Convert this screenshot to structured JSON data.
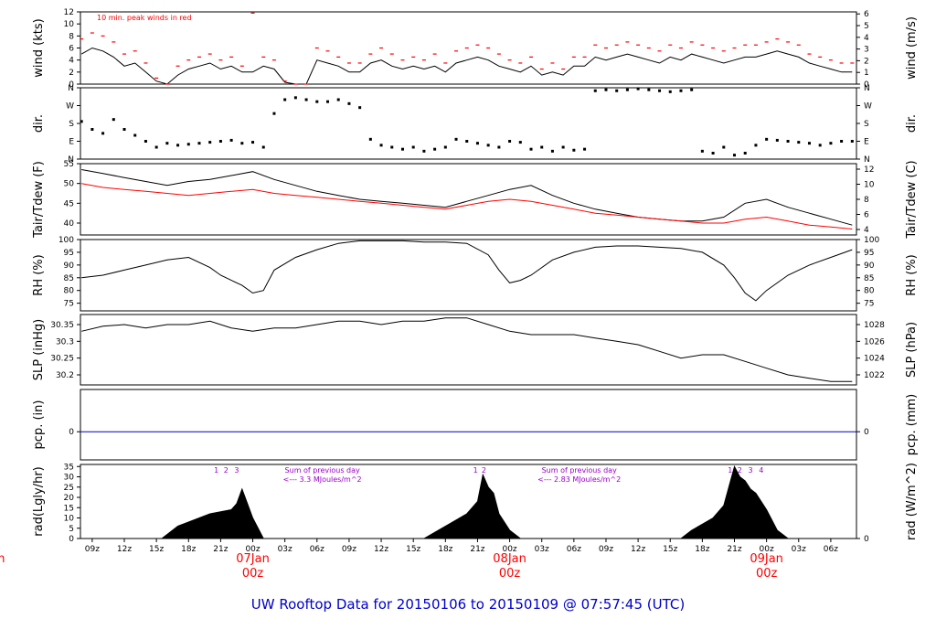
{
  "title": "UW Rooftop Data for 20150106  to  20150109 @ 07:57:45  (UTC)",
  "colors": {
    "ink": "#000000",
    "red": "#ff0000",
    "blue": "#0000cc",
    "purple": "#9900cc",
    "title_blue": "#0000cc"
  },
  "x_axis": {
    "tick_labels": [
      "09z",
      "12z",
      "15z",
      "18z",
      "21z",
      "00z",
      "03z",
      "06z",
      "09z",
      "12z",
      "15z",
      "18z",
      "21z",
      "00z",
      "03z",
      "06z",
      "09z",
      "12z",
      "15z",
      "18z",
      "21z",
      "00z",
      "03z",
      "06z"
    ],
    "tick_hours": [
      9,
      12,
      15,
      18,
      21,
      24,
      27,
      30,
      33,
      36,
      39,
      42,
      45,
      48,
      51,
      54,
      57,
      60,
      63,
      66,
      69,
      72,
      75,
      78
    ],
    "range_hours": [
      7.9,
      80.4
    ],
    "day_labels": [
      {
        "hour": 0,
        "day": "Jan",
        "z": "z"
      },
      {
        "hour": 24,
        "day": "07Jan",
        "z": "00z"
      },
      {
        "hour": 48,
        "day": "08Jan",
        "z": "00z"
      },
      {
        "hour": 72,
        "day": "09Jan",
        "z": "00z"
      }
    ]
  },
  "chart_data": [
    {
      "id": "wind",
      "type": "line",
      "ylabel_left": "wind (kts)",
      "ylabel_right": "wind (m/s)",
      "ylim": [
        0,
        12
      ],
      "ticks_left": [
        0,
        2,
        4,
        6,
        8,
        10,
        12
      ],
      "ticks_right": [
        0,
        1,
        2,
        3,
        4,
        5,
        6
      ],
      "right_scale": 1.944,
      "annotation": "10 min. peak winds in red",
      "series": [
        {
          "name": "wind speed",
          "color": "ink",
          "x": [
            8,
            9,
            10,
            11,
            12,
            13,
            14,
            15,
            16,
            17,
            18,
            19,
            20,
            21,
            22,
            23,
            24,
            25,
            26,
            27,
            28,
            29,
            30,
            31,
            32,
            33,
            34,
            35,
            36,
            37,
            38,
            39,
            40,
            41,
            42,
            43,
            44,
            45,
            46,
            47,
            48,
            49,
            50,
            51,
            52,
            53,
            54,
            55,
            56,
            57,
            58,
            59,
            60,
            61,
            62,
            63,
            64,
            65,
            66,
            67,
            68,
            69,
            70,
            71,
            72,
            73,
            74,
            75,
            76,
            77,
            78,
            79,
            80
          ],
          "y": [
            5,
            6,
            5.5,
            4.5,
            3,
            3.5,
            2,
            0.5,
            0,
            1.5,
            2.5,
            3,
            3.5,
            2.5,
            3,
            2,
            2,
            3,
            2.5,
            0.3,
            0,
            0,
            4,
            3.5,
            3,
            2,
            2,
            3.5,
            4,
            3,
            2.5,
            3,
            2.5,
            3,
            2,
            3.5,
            4,
            4.5,
            4,
            3,
            2.5,
            2,
            3,
            1.5,
            2,
            1.5,
            3,
            3,
            4.5,
            4,
            4.5,
            5,
            4.5,
            4,
            3.5,
            4.5,
            4,
            5,
            4.5,
            4,
            3.5,
            4,
            4.5,
            4.5,
            5,
            5.5,
            5,
            4.5,
            3.5,
            3,
            2.5,
            2,
            2
          ]
        },
        {
          "name": "10 min peak",
          "color": "red",
          "x": [
            8,
            9,
            10,
            11,
            12,
            13,
            14,
            15,
            16,
            17,
            18,
            19,
            20,
            21,
            22,
            23,
            24,
            25,
            26,
            27,
            28,
            29,
            30,
            31,
            32,
            33,
            34,
            35,
            36,
            37,
            38,
            39,
            40,
            41,
            42,
            43,
            44,
            45,
            46,
            47,
            48,
            49,
            50,
            51,
            52,
            53,
            54,
            55,
            56,
            57,
            58,
            59,
            60,
            61,
            62,
            63,
            64,
            65,
            66,
            67,
            68,
            69,
            70,
            71,
            72,
            73,
            74,
            75,
            76,
            77,
            78,
            79,
            80
          ],
          "y": [
            7.5,
            8.5,
            8,
            7,
            5,
            5.5,
            3.5,
            1,
            0,
            3,
            4,
            4.5,
            5,
            4,
            4.5,
            3,
            11.8,
            4.5,
            4,
            0.5,
            0,
            0,
            6,
            5.5,
            4.5,
            3.5,
            3.5,
            5,
            6,
            5,
            4,
            4.5,
            4,
            5,
            3.5,
            5.5,
            6,
            6.5,
            6,
            5,
            4,
            3.5,
            4.5,
            2.5,
            3.5,
            2.5,
            4.5,
            4.5,
            6.5,
            6,
            6.5,
            7,
            6.5,
            6,
            5.5,
            6.5,
            6,
            7,
            6.5,
            6,
            5.5,
            6,
            6.5,
            6.5,
            7,
            7.5,
            7,
            6.5,
            5,
            4.5,
            4,
            3.5,
            3.5
          ]
        }
      ]
    },
    {
      "id": "dir",
      "type": "scatter",
      "ylabel_left": "dir.",
      "ylabel_right": "dir.",
      "ylim": [
        0,
        360
      ],
      "categories_left": [
        "N",
        "E",
        "S",
        "W",
        "N"
      ],
      "category_degrees": [
        0,
        90,
        180,
        270,
        360
      ],
      "series": [
        {
          "name": "wind direction",
          "color": "ink",
          "x": [
            8,
            9,
            10,
            11,
            12,
            13,
            14,
            15,
            16,
            17,
            18,
            19,
            20,
            21,
            22,
            23,
            24,
            25,
            26,
            27,
            28,
            29,
            30,
            31,
            32,
            33,
            34,
            35,
            36,
            37,
            38,
            39,
            40,
            41,
            42,
            43,
            44,
            45,
            46,
            47,
            48,
            49,
            50,
            51,
            52,
            53,
            54,
            55,
            56,
            57,
            58,
            59,
            60,
            61,
            62,
            63,
            64,
            65,
            66,
            67,
            68,
            69,
            70,
            71,
            72,
            73,
            74,
            75,
            76,
            77,
            78,
            79,
            80
          ],
          "y": [
            190,
            150,
            130,
            200,
            150,
            120,
            90,
            60,
            80,
            70,
            75,
            80,
            85,
            90,
            95,
            80,
            85,
            60,
            230,
            300,
            310,
            300,
            290,
            290,
            300,
            280,
            260,
            100,
            70,
            60,
            50,
            60,
            40,
            50,
            60,
            100,
            90,
            80,
            70,
            60,
            90,
            85,
            50,
            60,
            40,
            60,
            45,
            50,
            345,
            350,
            345,
            350,
            355,
            350,
            345,
            340,
            345,
            350,
            40,
            30,
            60,
            20,
            30,
            70,
            100,
            95,
            90,
            85,
            80,
            70,
            80,
            90,
            90
          ]
        }
      ]
    },
    {
      "id": "temp",
      "type": "line",
      "ylabel_left": "Tair/Tdew (F)",
      "ylabel_right": "Tair/Tdew (C)",
      "ylim": [
        37,
        55
      ],
      "ticks_left": [
        40,
        45,
        50,
        55
      ],
      "ticks_right": [
        4,
        6,
        8,
        10,
        12
      ],
      "series": [
        {
          "name": "Tair",
          "color": "ink",
          "x": [
            8,
            10,
            12,
            14,
            16,
            18,
            20,
            22,
            24,
            26,
            28,
            30,
            32,
            34,
            36,
            38,
            40,
            42,
            44,
            46,
            48,
            50,
            52,
            54,
            56,
            58,
            60,
            62,
            64,
            66,
            68,
            70,
            72,
            74,
            76,
            78,
            80
          ],
          "y": [
            53.5,
            52.5,
            51.5,
            50.5,
            49.5,
            50.5,
            51,
            52,
            53,
            51,
            49.5,
            48,
            47,
            46,
            45.5,
            45,
            44.5,
            44,
            45.5,
            47,
            48.5,
            49.5,
            47,
            45,
            43.5,
            42.5,
            41.5,
            41,
            40.5,
            40.5,
            41.5,
            45,
            46,
            44,
            42.5,
            41,
            39.5
          ]
        },
        {
          "name": "Tdew",
          "color": "red",
          "x": [
            8,
            10,
            12,
            14,
            16,
            18,
            20,
            22,
            24,
            26,
            28,
            30,
            32,
            34,
            36,
            38,
            40,
            42,
            44,
            46,
            48,
            50,
            52,
            54,
            56,
            58,
            60,
            62,
            64,
            66,
            68,
            70,
            72,
            74,
            76,
            78,
            80
          ],
          "y": [
            50,
            49,
            48.5,
            48,
            47.5,
            47,
            47.5,
            48,
            48.5,
            47.5,
            47,
            46.5,
            46,
            45.5,
            45,
            44.5,
            44,
            43.5,
            44.5,
            45.5,
            46,
            45.5,
            44.5,
            43.5,
            42.5,
            42,
            41.5,
            41,
            40.5,
            40,
            40,
            41,
            41.5,
            40.5,
            39.5,
            39,
            38.5
          ]
        }
      ]
    },
    {
      "id": "rh",
      "type": "line",
      "ylabel_left": "RH (%)",
      "ylabel_right": "RH (%)",
      "ylim": [
        72,
        100
      ],
      "ticks_left": [
        75,
        80,
        85,
        90,
        95,
        100
      ],
      "ticks_right": [
        75,
        80,
        85,
        90,
        95,
        100
      ],
      "series": [
        {
          "name": "RH",
          "color": "ink",
          "x": [
            8,
            10,
            12,
            14,
            16,
            18,
            20,
            21,
            22,
            23,
            24,
            25,
            26,
            28,
            30,
            32,
            34,
            36,
            38,
            40,
            42,
            44,
            46,
            47,
            48,
            49,
            50,
            52,
            54,
            56,
            58,
            60,
            62,
            64,
            66,
            68,
            69,
            70,
            71,
            72,
            74,
            76,
            78,
            80
          ],
          "y": [
            85,
            86,
            88,
            90,
            92,
            93,
            89,
            86,
            84,
            82,
            79,
            80,
            88,
            93,
            96,
            98.5,
            99.5,
            99.5,
            99.5,
            99,
            99,
            98.5,
            94,
            88,
            83,
            84,
            86,
            92,
            95,
            97,
            97.5,
            97.5,
            97,
            96.5,
            95,
            90,
            85,
            79,
            76,
            80,
            86,
            90,
            93,
            96
          ]
        }
      ]
    },
    {
      "id": "slp",
      "type": "line",
      "ylabel_left": "SLP (inHg)",
      "ylabel_right": "SLP (hPa)",
      "ylim": [
        30.17,
        30.38
      ],
      "ticks_left": [
        30.2,
        30.25,
        30.3,
        30.35
      ],
      "ticks_right": [
        1022,
        1024,
        1026,
        1028
      ],
      "series": [
        {
          "name": "SLP",
          "color": "ink",
          "x": [
            8,
            10,
            12,
            14,
            16,
            18,
            20,
            22,
            24,
            26,
            28,
            30,
            32,
            34,
            36,
            38,
            40,
            42,
            44,
            46,
            48,
            50,
            52,
            54,
            56,
            58,
            60,
            62,
            64,
            66,
            68,
            70,
            72,
            74,
            76,
            78,
            80
          ],
          "y": [
            30.33,
            30.345,
            30.35,
            30.34,
            30.35,
            30.35,
            30.36,
            30.34,
            30.33,
            30.34,
            30.34,
            30.35,
            30.36,
            30.36,
            30.35,
            30.36,
            30.36,
            30.37,
            30.37,
            30.35,
            30.33,
            30.32,
            30.32,
            30.32,
            30.31,
            30.3,
            30.29,
            30.27,
            30.25,
            30.26,
            30.26,
            30.24,
            30.22,
            30.2,
            30.19,
            30.18,
            30.18
          ]
        }
      ]
    },
    {
      "id": "pcp",
      "type": "line",
      "ylabel_left": "pcp. (in)",
      "ylabel_right": "pcp. (mm)",
      "ylim": [
        -0.02,
        0.03
      ],
      "ticks_left": [
        0
      ],
      "ticks_right": [
        0
      ],
      "series": [
        {
          "name": "precip",
          "color": "blue",
          "x": [
            7.9,
            80.4
          ],
          "y": [
            0,
            0
          ]
        }
      ]
    },
    {
      "id": "rad",
      "type": "area",
      "ylabel_left": "rad(Lgly/hr)",
      "ylabel_right": "rad (W/m^2)",
      "ylim": [
        0,
        36
      ],
      "ticks_left": [
        0,
        5,
        10,
        15,
        20,
        25,
        30,
        35
      ],
      "ticks_right": [
        0,
        100,
        200,
        300,
        400
      ],
      "right_scale": 11.63,
      "series": [
        {
          "name": "solar radiation",
          "color": "ink",
          "x": [
            15.5,
            16,
            17,
            18,
            19,
            20,
            21,
            22,
            22.5,
            23,
            23.5,
            24,
            25,
            40,
            41,
            42,
            43,
            44,
            45,
            45.5,
            46,
            46.5,
            47,
            48,
            49,
            64,
            65,
            66,
            67,
            68,
            69,
            69.5,
            70,
            70.5,
            71,
            72,
            73,
            74
          ],
          "y": [
            0,
            2,
            6,
            8,
            10,
            12,
            13,
            14,
            17,
            24,
            17,
            10,
            0,
            0,
            3,
            6,
            9,
            12,
            18,
            31,
            25,
            22,
            12,
            4,
            0,
            0,
            4,
            7,
            10,
            16,
            35,
            30,
            28,
            24,
            22,
            14,
            4,
            0
          ]
        }
      ],
      "hour_marks": [
        {
          "hour": 20.6,
          "label": "1"
        },
        {
          "hour": 21.5,
          "label": "2"
        },
        {
          "hour": 22.5,
          "label": "3"
        },
        {
          "hour": 44.8,
          "label": "1"
        },
        {
          "hour": 45.6,
          "label": "2"
        },
        {
          "hour": 68.6,
          "label": "1"
        },
        {
          "hour": 69.5,
          "label": "2"
        },
        {
          "hour": 70.5,
          "label": "3"
        },
        {
          "hour": 71.5,
          "label": "4"
        }
      ],
      "annotations": [
        {
          "hour": 30.5,
          "line1": "Sum of previous day",
          "line2": "<--- 3.3 MJoules/m^2"
        },
        {
          "hour": 54.5,
          "line1": "Sum of previous day",
          "line2": "<--- 2.83 MJoules/m^2"
        }
      ]
    }
  ]
}
